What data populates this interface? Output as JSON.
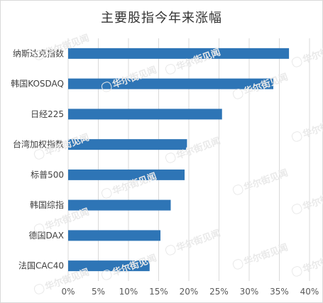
{
  "chart_data": {
    "type": "bar",
    "orientation": "horizontal",
    "title": "主要股指今年来涨幅",
    "categories": [
      "纳斯达克指数",
      "韩国KOSDAQ",
      "日经225",
      "台湾加权指数",
      "标普500",
      "韩国综指",
      "德国DAX",
      "法国CAC40"
    ],
    "values": [
      36.6,
      34.0,
      25.5,
      19.7,
      19.3,
      17.0,
      15.3,
      13.5
    ],
    "x_ticks": [
      "0%",
      "5%",
      "10%",
      "15%",
      "20%",
      "25%",
      "30%",
      "35%",
      "40%"
    ],
    "xlim": [
      0,
      40
    ],
    "xlabel": "",
    "ylabel": "",
    "grid": "vertical",
    "legend": "none",
    "bar_color": "#2e75b6",
    "grid_color": "#d9d9d9"
  },
  "watermark": {
    "text": "华尔街见闻"
  }
}
